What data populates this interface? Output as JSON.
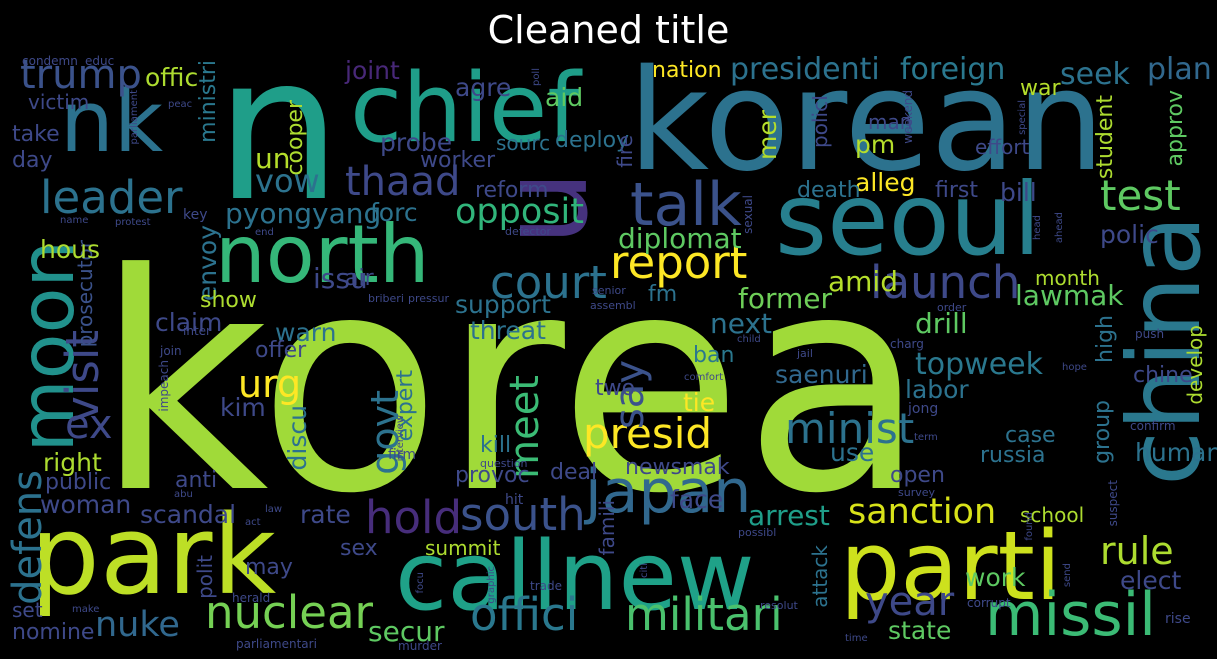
{
  "title": "Cleaned title",
  "colors": {
    "background": "#000000",
    "title": "#ffffff",
    "palette": [
      "#440154",
      "#482878",
      "#3e4989",
      "#31688e",
      "#26828e",
      "#1f9e89",
      "#35b779",
      "#6ece58",
      "#b5de2b",
      "#fde725"
    ]
  },
  "words": [
    {
      "text": "korea",
      "color": "#a0da39"
    },
    {
      "text": "n",
      "color": "#1f9e89"
    },
    {
      "text": "korean",
      "color": "#2c728e"
    },
    {
      "text": "u",
      "color": "#46327e"
    },
    {
      "text": "chief",
      "color": "#1f9e89"
    },
    {
      "text": "seoul",
      "color": "#277f8e"
    },
    {
      "text": "china",
      "color": "#2a788e"
    },
    {
      "text": "park",
      "color": "#bddf26"
    },
    {
      "text": "callnew",
      "color": "#1fa188"
    },
    {
      "text": "parti",
      "color": "#cde11d"
    },
    {
      "text": "north",
      "color": "#35b779"
    },
    {
      "text": "moon",
      "color": "#21918c"
    },
    {
      "text": "nk",
      "color": "#2c728e"
    },
    {
      "text": "japan",
      "color": "#31688e"
    },
    {
      "text": "missil",
      "color": "#3bbb75"
    },
    {
      "text": "militari",
      "color": "#4ac16d"
    },
    {
      "text": "offici",
      "color": "#2a788e"
    },
    {
      "text": "nuclear",
      "color": "#75d054"
    },
    {
      "text": "talk",
      "color": "#3b528b"
    },
    {
      "text": "report",
      "color": "#fde725"
    },
    {
      "text": "sanction",
      "color": "#d8e219"
    },
    {
      "text": "presid",
      "color": "#fde725"
    },
    {
      "text": "court",
      "color": "#2c728e"
    },
    {
      "text": "launch",
      "color": "#3e4989"
    },
    {
      "text": "south",
      "color": "#3b528b"
    },
    {
      "text": "hold",
      "color": "#472d7b"
    },
    {
      "text": "minist",
      "color": "#2c728e"
    },
    {
      "text": "year",
      "color": "#3e4989"
    },
    {
      "text": "rule",
      "color": "#addc30"
    },
    {
      "text": "test",
      "color": "#5ec962"
    },
    {
      "text": "leader",
      "color": "#2c728e"
    },
    {
      "text": "trump",
      "color": "#3b528b"
    },
    {
      "text": "thaad",
      "color": "#3e4989"
    },
    {
      "text": "opposit",
      "color": "#31b57b"
    },
    {
      "text": "visit",
      "color": "#3e4989"
    },
    {
      "text": "defens",
      "color": "#2c728e"
    },
    {
      "text": "meet",
      "color": "#3bbb75"
    },
    {
      "text": "say",
      "color": "#3b528b"
    },
    {
      "text": "urg",
      "color": "#fde725"
    },
    {
      "text": "govt",
      "color": "#2c728e"
    },
    {
      "text": "ex",
      "color": "#3e4989"
    },
    {
      "text": "nuke",
      "color": "#31688e"
    },
    {
      "text": "presidenti",
      "color": "#2c728e"
    },
    {
      "text": "foreign",
      "color": "#2a788e"
    },
    {
      "text": "vow",
      "color": "#2c728e"
    },
    {
      "text": "pyongyang",
      "color": "#2c728e"
    },
    {
      "text": "diplomat",
      "color": "#5ec962"
    },
    {
      "text": "arrest",
      "color": "#1f9e89"
    },
    {
      "text": "secur",
      "color": "#5ec962"
    },
    {
      "text": "state",
      "color": "#5ec962"
    },
    {
      "text": "lawmak",
      "color": "#5ec962"
    },
    {
      "text": "former",
      "color": "#6ece58"
    },
    {
      "text": "amid",
      "color": "#b5de2b"
    },
    {
      "text": "topweek",
      "color": "#2a788e"
    },
    {
      "text": "seek",
      "color": "#2c728e"
    },
    {
      "text": "plan",
      "color": "#31688e"
    },
    {
      "text": "polic",
      "color": "#3e4989"
    },
    {
      "text": "elect",
      "color": "#3e4989"
    },
    {
      "text": "work",
      "color": "#5ec962"
    },
    {
      "text": "offic",
      "color": "#addc30"
    },
    {
      "text": "aid",
      "color": "#5ec962"
    },
    {
      "text": "nation",
      "color": "#fde725"
    },
    {
      "text": "war",
      "color": "#b5de2b"
    },
    {
      "text": "agre",
      "color": "#3e4989"
    },
    {
      "text": "joint",
      "color": "#482878"
    },
    {
      "text": "ministri",
      "color": "#2a788e"
    },
    {
      "text": "cooper",
      "color": "#addc30"
    },
    {
      "text": "un",
      "color": "#b5de2b"
    },
    {
      "text": "mer",
      "color": "#b5de2b"
    },
    {
      "text": "pm",
      "color": "#b5de2b"
    },
    {
      "text": "alleg",
      "color": "#fde725"
    },
    {
      "text": "probe",
      "color": "#3e4989"
    },
    {
      "text": "worker",
      "color": "#3e4989"
    },
    {
      "text": "sourc",
      "color": "#2c728e"
    },
    {
      "text": "deploy",
      "color": "#2c728e"
    },
    {
      "text": "reform",
      "color": "#3e4989"
    },
    {
      "text": "forc",
      "color": "#2c728e"
    },
    {
      "text": "envoy",
      "color": "#2c728e"
    },
    {
      "text": "prosecutor",
      "color": "#3b528b"
    },
    {
      "text": "issu",
      "color": "#3e4989"
    },
    {
      "text": "fm",
      "color": "#2c728e"
    },
    {
      "text": "support",
      "color": "#2c728e"
    },
    {
      "text": "threat",
      "color": "#2c728e"
    },
    {
      "text": "claim",
      "color": "#3e4989"
    },
    {
      "text": "warn",
      "color": "#2c728e"
    },
    {
      "text": "offer",
      "color": "#3e4989"
    },
    {
      "text": "show",
      "color": "#addc30"
    },
    {
      "text": "air",
      "color": "#3e4989"
    },
    {
      "text": "hous",
      "color": "#addc30"
    },
    {
      "text": "right",
      "color": "#addc30"
    },
    {
      "text": "public",
      "color": "#3e4989"
    },
    {
      "text": "woman",
      "color": "#3e4989"
    },
    {
      "text": "anti",
      "color": "#3e4989"
    },
    {
      "text": "kim",
      "color": "#3e4989"
    },
    {
      "text": "expert",
      "color": "#2c728e"
    },
    {
      "text": "discu",
      "color": "#2c728e"
    },
    {
      "text": "scandal",
      "color": "#3e4989"
    },
    {
      "text": "rate",
      "color": "#3e4989"
    },
    {
      "text": "sex",
      "color": "#3e4989"
    },
    {
      "text": "summit",
      "color": "#addc30"
    },
    {
      "text": "may",
      "color": "#3e4989"
    },
    {
      "text": "polit",
      "color": "#3e4989"
    },
    {
      "text": "next",
      "color": "#2c728e"
    },
    {
      "text": "drill",
      "color": "#5ec962"
    },
    {
      "text": "ban",
      "color": "#2a788e"
    },
    {
      "text": "tie",
      "color": "#fde725"
    },
    {
      "text": "two",
      "color": "#3e4989"
    },
    {
      "text": "saenuri",
      "color": "#31688e"
    },
    {
      "text": "labor",
      "color": "#2c728e"
    },
    {
      "text": "use",
      "color": "#2c728e"
    },
    {
      "text": "open",
      "color": "#3e4989"
    },
    {
      "text": "face",
      "color": "#3e4989"
    },
    {
      "text": "newsmak",
      "color": "#3e4989"
    },
    {
      "text": "provoc",
      "color": "#3e4989"
    },
    {
      "text": "kill",
      "color": "#2c728e"
    },
    {
      "text": "deal",
      "color": "#3e4989"
    },
    {
      "text": "first",
      "color": "#3e4989"
    },
    {
      "text": "bill",
      "color": "#3e4989"
    },
    {
      "text": "death",
      "color": "#2c728e"
    },
    {
      "text": "chine",
      "color": "#3e4989"
    },
    {
      "text": "develop",
      "color": "#addc30"
    },
    {
      "text": "human",
      "color": "#2c728e"
    },
    {
      "text": "group",
      "color": "#2c728e"
    },
    {
      "text": "case",
      "color": "#2c728e"
    },
    {
      "text": "russia",
      "color": "#2c728e"
    },
    {
      "text": "high",
      "color": "#2c728e"
    },
    {
      "text": "student",
      "color": "#addc30"
    },
    {
      "text": "approv",
      "color": "#5ec962"
    },
    {
      "text": "month",
      "color": "#addc30"
    },
    {
      "text": "school",
      "color": "#addc30"
    },
    {
      "text": "famili",
      "color": "#3e4989"
    },
    {
      "text": "attack",
      "color": "#2c728e"
    },
    {
      "text": "man",
      "color": "#3e4989"
    },
    {
      "text": "effort",
      "color": "#3e4989"
    },
    {
      "text": "policI",
      "color": "#3e4989"
    },
    {
      "text": "fire",
      "color": "#3e4989"
    },
    {
      "text": "victim",
      "color": "#3e4989"
    },
    {
      "text": "take",
      "color": "#3e4989"
    },
    {
      "text": "day",
      "color": "#3e4989"
    },
    {
      "text": "set",
      "color": "#3e4989"
    },
    {
      "text": "nomine",
      "color": "#3e4989"
    },
    {
      "text": "condemn",
      "color": "#3e4989"
    },
    {
      "text": "educ",
      "color": "#3e4989"
    },
    {
      "text": "key",
      "color": "#3e4989"
    },
    {
      "text": "name",
      "color": "#3e4989"
    },
    {
      "text": "protest",
      "color": "#3e4989"
    },
    {
      "text": "inter",
      "color": "#3e4989"
    },
    {
      "text": "join",
      "color": "#3e4989"
    },
    {
      "text": "impeach",
      "color": "#3e4989"
    },
    {
      "text": "briberi",
      "color": "#3e4989"
    },
    {
      "text": "pressur",
      "color": "#3e4989"
    },
    {
      "text": "senior",
      "color": "#3e4989"
    },
    {
      "text": "assembl",
      "color": "#3e4989"
    },
    {
      "text": "interview",
      "color": "#3e4989"
    },
    {
      "text": "abu",
      "color": "#3e4989"
    },
    {
      "text": "law",
      "color": "#3e4989"
    },
    {
      "text": "act",
      "color": "#3e4989"
    },
    {
      "text": "herald",
      "color": "#3e4989"
    },
    {
      "text": "make",
      "color": "#3e4989"
    },
    {
      "text": "parliamentari",
      "color": "#3e4989"
    },
    {
      "text": "murder",
      "color": "#3e4989"
    },
    {
      "text": "hit",
      "color": "#3e4989"
    },
    {
      "text": "question",
      "color": "#3e4989"
    },
    {
      "text": "firm",
      "color": "#3e4989"
    },
    {
      "text": "trade",
      "color": "#3e4989"
    },
    {
      "text": "graphic",
      "color": "#3e4989"
    },
    {
      "text": "focu",
      "color": "#3e4989"
    },
    {
      "text": "possibl",
      "color": "#3e4989"
    },
    {
      "text": "citi",
      "color": "#3e4989"
    },
    {
      "text": "resolut",
      "color": "#3e4989"
    },
    {
      "text": "corrupt",
      "color": "#3e4989"
    },
    {
      "text": "time",
      "color": "#3e4989"
    },
    {
      "text": "term",
      "color": "#3e4989"
    },
    {
      "text": "survey",
      "color": "#3e4989"
    },
    {
      "text": "jong",
      "color": "#3e4989"
    },
    {
      "text": "comfort",
      "color": "#3e4989"
    },
    {
      "text": "child",
      "color": "#3e4989"
    },
    {
      "text": "charg",
      "color": "#3e4989"
    },
    {
      "text": "jail",
      "color": "#3e4989"
    },
    {
      "text": "order",
      "color": "#3e4989"
    },
    {
      "text": "push",
      "color": "#3e4989"
    },
    {
      "text": "hope",
      "color": "#3e4989"
    },
    {
      "text": "confirm",
      "color": "#3e4989"
    },
    {
      "text": "send",
      "color": "#3e4989"
    },
    {
      "text": "suspect",
      "color": "#3e4989"
    },
    {
      "text": "found",
      "color": "#3e4989"
    },
    {
      "text": "rise",
      "color": "#3e4989"
    },
    {
      "text": "peac",
      "color": "#3e4989"
    },
    {
      "text": "parliament",
      "color": "#3e4989"
    },
    {
      "text": "poll",
      "color": "#3e4989"
    },
    {
      "text": "weekend",
      "color": "#3e4989"
    },
    {
      "text": "special",
      "color": "#3e4989"
    },
    {
      "text": "head",
      "color": "#3e4989"
    },
    {
      "text": "ahead",
      "color": "#3e4989"
    },
    {
      "text": "defector",
      "color": "#3e4989"
    },
    {
      "text": "sexual",
      "color": "#3e4989"
    },
    {
      "text": "end",
      "color": "#3e4989"
    }
  ]
}
